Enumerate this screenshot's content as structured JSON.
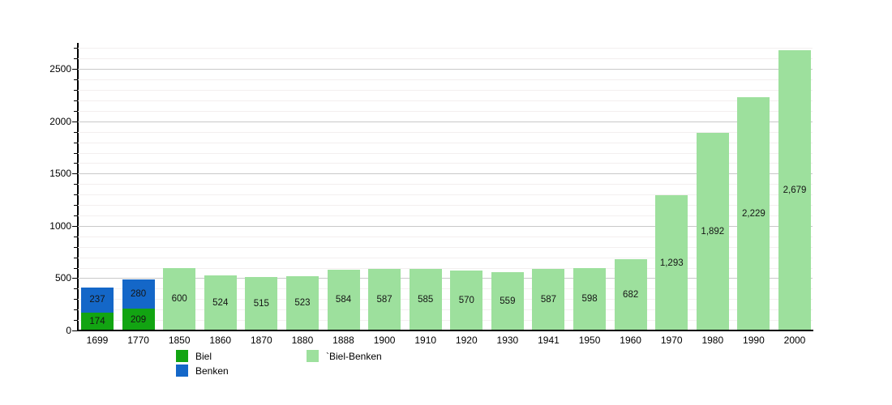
{
  "chart_data": {
    "type": "bar",
    "title": "",
    "xlabel": "",
    "ylabel": "",
    "stacked": true,
    "grid": true,
    "legend_position": "bottom",
    "ylim": [
      0,
      2750
    ],
    "yticks": [
      0,
      500,
      1000,
      1500,
      2000,
      2500
    ],
    "minor_grid_step": 100,
    "categories": [
      "1699",
      "1770",
      "1850",
      "1860",
      "1870",
      "1880",
      "1888",
      "1900",
      "1910",
      "1920",
      "1930",
      "1941",
      "1950",
      "1960",
      "1970",
      "1980",
      "1990",
      "2000"
    ],
    "series": [
      {
        "name": "Biel",
        "color": "#12a412",
        "values": [
          174,
          209,
          null,
          null,
          null,
          null,
          null,
          null,
          null,
          null,
          null,
          null,
          null,
          null,
          null,
          null,
          null,
          null
        ]
      },
      {
        "name": "Benken",
        "color": "#1467c8",
        "values": [
          237,
          280,
          null,
          null,
          null,
          null,
          null,
          null,
          null,
          null,
          null,
          null,
          null,
          null,
          null,
          null,
          null,
          null
        ]
      },
      {
        "name": "Biel-Benken",
        "color": "#9de09d",
        "values": [
          null,
          null,
          600,
          524,
          515,
          523,
          584,
          587,
          585,
          570,
          559,
          587,
          598,
          682,
          1293,
          1892,
          2229,
          2679
        ]
      }
    ]
  },
  "legend": {
    "items": [
      {
        "label": "Biel",
        "color": "#12a412"
      },
      {
        "label": "Benken",
        "color": "#1467c8"
      },
      {
        "label": "`Biel-Benken",
        "color": "#9de09d"
      }
    ]
  }
}
